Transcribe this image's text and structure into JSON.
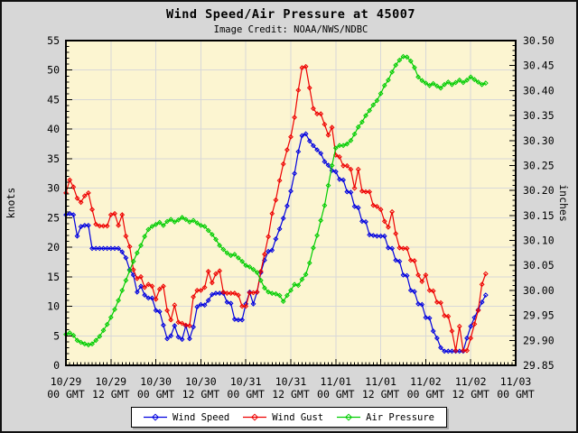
{
  "colors": {
    "background": "#d7d7d7",
    "plot_background": "#fcf5d1",
    "grid": "#d8d8d8",
    "frame": "#000000",
    "wind_speed": "#0000e0",
    "wind_gust": "#ee0000",
    "air_pressure": "#00cd00"
  },
  "chart_data": {
    "type": "line",
    "title": "Wind Speed/Air Pressure at 45007",
    "subtitle": "Image Credit: NOAA/NWS/NDBC",
    "station_id": "45007",
    "ylabel": "knots",
    "y2label": "inches",
    "x_start": "10/29 00 GMT",
    "x_end": "11/03 00 GMT",
    "x_interval_hours": 1,
    "x_axis_range_hours": [
      0,
      120
    ],
    "ylim_left": [
      0,
      55
    ],
    "ylim_right": [
      29.85,
      30.5
    ],
    "grid": true,
    "legend_position": "bottom-center",
    "y_ticks": [
      "0",
      "5",
      "10",
      "15",
      "20",
      "25",
      "30",
      "35",
      "40",
      "45",
      "50",
      "55"
    ],
    "y2_ticks": [
      "29.85",
      "29.90",
      "29.95",
      "30.00",
      "30.05",
      "30.10",
      "30.15",
      "30.20",
      "30.25",
      "30.30",
      "30.35",
      "30.40",
      "30.45",
      "30.50"
    ],
    "x_ticks": [
      {
        "date": "10/29",
        "time": "00 GMT"
      },
      {
        "date": "10/29",
        "time": "12 GMT"
      },
      {
        "date": "10/30",
        "time": "00 GMT"
      },
      {
        "date": "10/30",
        "time": "12 GMT"
      },
      {
        "date": "10/31",
        "time": "00 GMT"
      },
      {
        "date": "10/31",
        "time": "12 GMT"
      },
      {
        "date": "11/01",
        "time": "00 GMT"
      },
      {
        "date": "11/01",
        "time": "12 GMT"
      },
      {
        "date": "11/02",
        "time": "00 GMT"
      },
      {
        "date": "11/02",
        "time": "12 GMT"
      },
      {
        "date": "11/03",
        "time": "00 GMT"
      }
    ],
    "series": [
      {
        "name": "Wind Speed",
        "axis": "left",
        "unit": "knots",
        "color": "#0000e0",
        "values": [
          25.5,
          25.7,
          25.5,
          21.9,
          23.5,
          23.7,
          23.7,
          19.8,
          19.8,
          19.8,
          19.8,
          19.8,
          19.8,
          19.8,
          19.8,
          19.2,
          18.2,
          16.2,
          15.3,
          12.4,
          13.4,
          11.9,
          11.4,
          11.4,
          9.3,
          9.1,
          6.8,
          4.5,
          5.0,
          6.7,
          4.8,
          4.4,
          6.7,
          4.5,
          6.5,
          9.9,
          10.3,
          10.2,
          11.0,
          12.0,
          12.2,
          12.2,
          12.2,
          10.7,
          10.5,
          7.8,
          7.7,
          7.7,
          10.4,
          12.4,
          10.4,
          12.4,
          15.7,
          17.8,
          19.3,
          19.5,
          21.4,
          23.1,
          24.9,
          27.0,
          29.5,
          32.5,
          36.2,
          38.9,
          39.2,
          38.0,
          37.2,
          36.5,
          35.9,
          34.5,
          33.9,
          33.0,
          32.8,
          31.5,
          31.4,
          29.4,
          29.3,
          26.9,
          26.7,
          24.4,
          24.3,
          22.1,
          22.0,
          21.9,
          21.9,
          21.9,
          19.9,
          19.8,
          17.8,
          17.6,
          15.3,
          15.2,
          12.7,
          12.5,
          10.4,
          10.3,
          8.1,
          8.0,
          5.8,
          4.6,
          3.0,
          2.4,
          2.4,
          2.4,
          2.4,
          2.4,
          2.4,
          4.6,
          6.6,
          8.1,
          9.4,
          10.7,
          11.9
        ]
      },
      {
        "name": "Wind Gust",
        "axis": "left",
        "unit": "knots",
        "color": "#ee0000",
        "values": [
          29.2,
          31.4,
          30.2,
          28.3,
          27.6,
          28.7,
          29.2,
          26.4,
          23.9,
          23.6,
          23.6,
          23.6,
          25.5,
          25.7,
          23.7,
          25.5,
          21.9,
          20.1,
          16.2,
          14.7,
          15.0,
          13.2,
          13.7,
          13.4,
          11.2,
          12.9,
          13.4,
          9.3,
          7.7,
          10.2,
          7.3,
          7.1,
          6.8,
          6.7,
          11.6,
          12.7,
          12.7,
          13.2,
          15.9,
          14.0,
          15.5,
          16.0,
          12.4,
          12.2,
          12.2,
          12.2,
          11.9,
          10.0,
          10.0,
          12.3,
          12.3,
          12.4,
          15.9,
          18.8,
          21.8,
          25.7,
          28.0,
          31.3,
          34.1,
          36.5,
          38.7,
          42.0,
          46.6,
          50.4,
          50.6,
          47.0,
          43.5,
          42.6,
          42.6,
          40.8,
          39.0,
          40.3,
          35.6,
          35.3,
          33.8,
          33.8,
          33.2,
          30.0,
          33.2,
          29.5,
          29.4,
          29.4,
          27.1,
          26.9,
          26.4,
          24.4,
          23.4,
          26.0,
          22.3,
          19.9,
          19.8,
          19.8,
          17.8,
          17.7,
          15.3,
          14.2,
          15.3,
          12.7,
          12.6,
          10.7,
          10.6,
          8.4,
          8.3,
          5.8,
          2.5,
          6.6,
          2.5,
          2.5,
          4.6,
          7.0,
          9.3,
          13.7,
          15.5
        ]
      },
      {
        "name": "Air Pressure",
        "axis": "right",
        "unit": "inches",
        "color": "#00cd00",
        "values": [
          29.912,
          29.915,
          29.91,
          29.9,
          29.896,
          29.893,
          29.891,
          29.893,
          29.9,
          29.908,
          29.92,
          29.932,
          29.946,
          29.962,
          29.98,
          30.0,
          30.02,
          30.04,
          30.058,
          30.075,
          30.09,
          30.108,
          30.122,
          30.128,
          30.132,
          30.136,
          30.13,
          30.138,
          30.142,
          30.137,
          30.141,
          30.146,
          30.142,
          30.137,
          30.14,
          30.135,
          30.13,
          30.128,
          30.12,
          30.112,
          30.102,
          30.09,
          30.082,
          30.075,
          30.07,
          30.072,
          30.065,
          30.058,
          30.05,
          30.047,
          30.042,
          30.036,
          30.02,
          30.005,
          29.997,
          29.994,
          29.993,
          29.99,
          29.978,
          29.99,
          30.0,
          30.012,
          30.01,
          30.022,
          30.032,
          30.055,
          30.085,
          30.11,
          30.14,
          30.17,
          30.21,
          30.25,
          30.285,
          30.29,
          30.29,
          30.293,
          30.3,
          30.313,
          30.327,
          30.337,
          30.35,
          30.36,
          30.371,
          30.38,
          30.394,
          30.41,
          30.421,
          30.437,
          30.451,
          30.461,
          30.468,
          30.467,
          30.459,
          30.446,
          30.427,
          30.42,
          30.415,
          30.41,
          30.414,
          30.409,
          30.405,
          30.412,
          30.417,
          30.412,
          30.416,
          30.421,
          30.416,
          30.421,
          30.427,
          30.422,
          30.417,
          30.412,
          30.415
        ]
      }
    ]
  }
}
